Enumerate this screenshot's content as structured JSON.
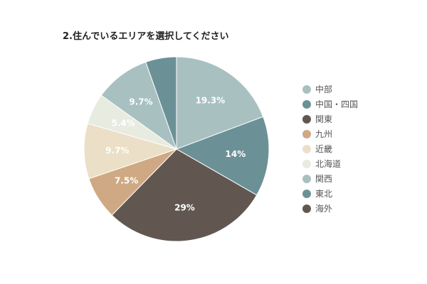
{
  "chart_data": {
    "type": "pie",
    "title": "2.住んでいるエリアを選択してください",
    "categories": [
      "中部",
      "中国・四国",
      "関東",
      "九州",
      "近畿",
      "北海道",
      "関西",
      "東北",
      "海外"
    ],
    "values": [
      19.3,
      14,
      29,
      7.5,
      9.7,
      5.4,
      9.7,
      5.4,
      0
    ],
    "slice_labels": [
      "19.3%",
      "14%",
      "29%",
      "7.5%",
      "9.7%",
      "5.4%",
      "9.7%",
      "",
      ""
    ],
    "colors": [
      "#a9c0c1",
      "#6b9197",
      "#625750",
      "#cfa983",
      "#ecdfc7",
      "#e7ebe0",
      "#a9c0c1",
      "#6b9197",
      "#625750"
    ],
    "label_colors": [
      "#ffffff",
      "#ffffff",
      "#ffffff",
      "#ffffff",
      "#ffffff",
      "#ffffff",
      "#ffffff",
      "#ffffff",
      "#ffffff"
    ],
    "legend_position": "right"
  }
}
